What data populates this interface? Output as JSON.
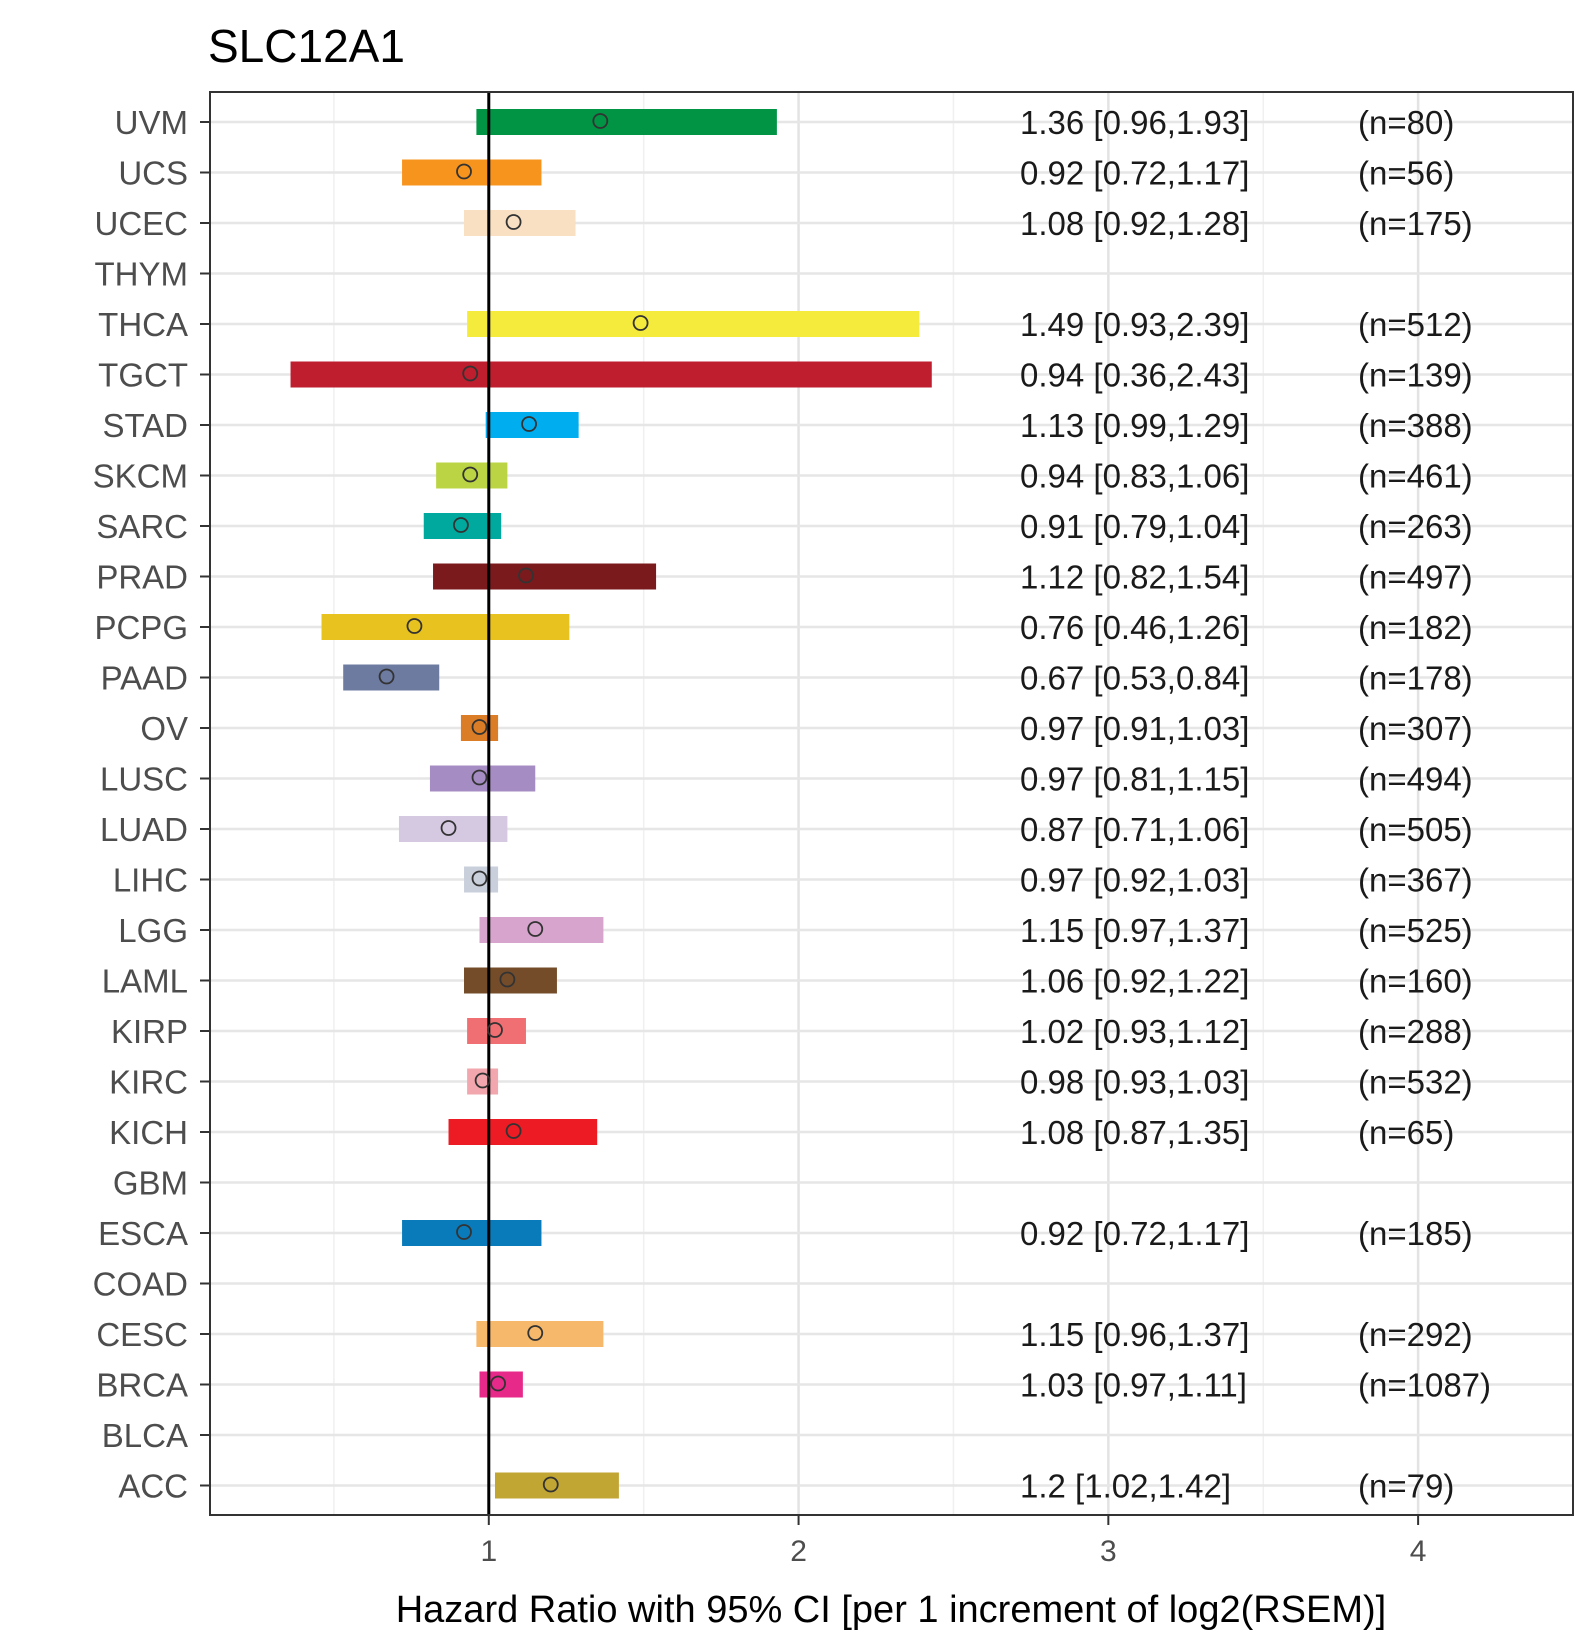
{
  "chart_data": {
    "type": "forest",
    "title": "SLC12A1",
    "xlabel": "Hazard Ratio with 95% CI [per 1 increment of log2(RSEM)]",
    "xlim": [
      0.1,
      4.5
    ],
    "xticks": [
      "1",
      "2",
      "3",
      "4"
    ],
    "reference_line": 1,
    "rows": [
      {
        "label": "UVM",
        "hr": 1.36,
        "lo": 0.96,
        "hi": 1.93,
        "text": "1.36 [0.96,1.93]",
        "n": "(n=80)",
        "color": "#009444"
      },
      {
        "label": "UCS",
        "hr": 0.92,
        "lo": 0.72,
        "hi": 1.17,
        "text": "0.92 [0.72,1.17]",
        "n": "(n=56)",
        "color": "#F7941D"
      },
      {
        "label": "UCEC",
        "hr": 1.08,
        "lo": 0.92,
        "hi": 1.28,
        "text": "1.08 [0.92,1.28]",
        "n": "(n=175)",
        "color": "#FAE0C2"
      },
      {
        "label": "THYM",
        "hr": null,
        "lo": null,
        "hi": null,
        "text": "",
        "n": "",
        "color": "#999999"
      },
      {
        "label": "THCA",
        "hr": 1.49,
        "lo": 0.93,
        "hi": 2.39,
        "text": "1.49 [0.93,2.39]",
        "n": "(n=512)",
        "color": "#F5EB3C"
      },
      {
        "label": "TGCT",
        "hr": 0.94,
        "lo": 0.36,
        "hi": 2.43,
        "text": "0.94 [0.36,2.43]",
        "n": "(n=139)",
        "color": "#BE1E2D"
      },
      {
        "label": "STAD",
        "hr": 1.13,
        "lo": 0.99,
        "hi": 1.29,
        "text": "1.13 [0.99,1.29]",
        "n": "(n=388)",
        "color": "#00AEEF"
      },
      {
        "label": "SKCM",
        "hr": 0.94,
        "lo": 0.83,
        "hi": 1.06,
        "text": "0.94 [0.83,1.06]",
        "n": "(n=461)",
        "color": "#BBD444"
      },
      {
        "label": "SARC",
        "hr": 0.91,
        "lo": 0.79,
        "hi": 1.04,
        "text": "0.91 [0.79,1.04]",
        "n": "(n=263)",
        "color": "#00A99D"
      },
      {
        "label": "PRAD",
        "hr": 1.12,
        "lo": 0.82,
        "hi": 1.54,
        "text": "1.12 [0.82,1.54]",
        "n": "(n=497)",
        "color": "#7B1A1C"
      },
      {
        "label": "PCPG",
        "hr": 0.76,
        "lo": 0.46,
        "hi": 1.26,
        "text": "0.76 [0.46,1.26]",
        "n": "(n=182)",
        "color": "#E8C21F"
      },
      {
        "label": "PAAD",
        "hr": 0.67,
        "lo": 0.53,
        "hi": 0.84,
        "text": "0.67 [0.53,0.84]",
        "n": "(n=178)",
        "color": "#6D7BA1"
      },
      {
        "label": "OV",
        "hr": 0.97,
        "lo": 0.91,
        "hi": 1.03,
        "text": "0.97 [0.91,1.03]",
        "n": "(n=307)",
        "color": "#DB7D27"
      },
      {
        "label": "LUSC",
        "hr": 0.97,
        "lo": 0.81,
        "hi": 1.15,
        "text": "0.97 [0.81,1.15]",
        "n": "(n=494)",
        "color": "#A58CC2"
      },
      {
        "label": "LUAD",
        "hr": 0.87,
        "lo": 0.71,
        "hi": 1.06,
        "text": "0.87 [0.71,1.06]",
        "n": "(n=505)",
        "color": "#D5C8E1"
      },
      {
        "label": "LIHC",
        "hr": 0.97,
        "lo": 0.92,
        "hi": 1.03,
        "text": "0.97 [0.92,1.03]",
        "n": "(n=367)",
        "color": "#CACFDC"
      },
      {
        "label": "LGG",
        "hr": 1.15,
        "lo": 0.97,
        "hi": 1.37,
        "text": "1.15 [0.97,1.37]",
        "n": "(n=525)",
        "color": "#D6A4CC"
      },
      {
        "label": "LAML",
        "hr": 1.06,
        "lo": 0.92,
        "hi": 1.22,
        "text": "1.06 [0.92,1.22]",
        "n": "(n=160)",
        "color": "#754C29"
      },
      {
        "label": "KIRP",
        "hr": 1.02,
        "lo": 0.93,
        "hi": 1.12,
        "text": "1.02 [0.93,1.12]",
        "n": "(n=288)",
        "color": "#EF6F73"
      },
      {
        "label": "KIRC",
        "hr": 0.98,
        "lo": 0.93,
        "hi": 1.03,
        "text": "0.98 [0.93,1.03]",
        "n": "(n=532)",
        "color": "#F2A7AE"
      },
      {
        "label": "KICH",
        "hr": 1.08,
        "lo": 0.87,
        "hi": 1.35,
        "text": "1.08 [0.87,1.35]",
        "n": "(n=65)",
        "color": "#ED1C24"
      },
      {
        "label": "GBM",
        "hr": null,
        "lo": null,
        "hi": null,
        "text": "",
        "n": "",
        "color": "#999999"
      },
      {
        "label": "ESCA",
        "hr": 0.92,
        "lo": 0.72,
        "hi": 1.17,
        "text": "0.92 [0.72,1.17]",
        "n": "(n=185)",
        "color": "#0A7BBA"
      },
      {
        "label": "COAD",
        "hr": null,
        "lo": null,
        "hi": null,
        "text": "",
        "n": "",
        "color": "#999999"
      },
      {
        "label": "CESC",
        "hr": 1.15,
        "lo": 0.96,
        "hi": 1.37,
        "text": "1.15 [0.96,1.37]",
        "n": "(n=292)",
        "color": "#F6B86A"
      },
      {
        "label": "BRCA",
        "hr": 1.03,
        "lo": 0.97,
        "hi": 1.11,
        "text": "1.03 [0.97,1.11]",
        "n": "(n=1087)",
        "color": "#E7298A"
      },
      {
        "label": "BLCA",
        "hr": null,
        "lo": null,
        "hi": null,
        "text": "",
        "n": "",
        "color": "#999999"
      },
      {
        "label": "ACC",
        "hr": 1.2,
        "lo": 1.02,
        "hi": 1.42,
        "text": "1.2 [1.02,1.42]",
        "n": "(n=79)",
        "color": "#C2A633"
      }
    ]
  }
}
